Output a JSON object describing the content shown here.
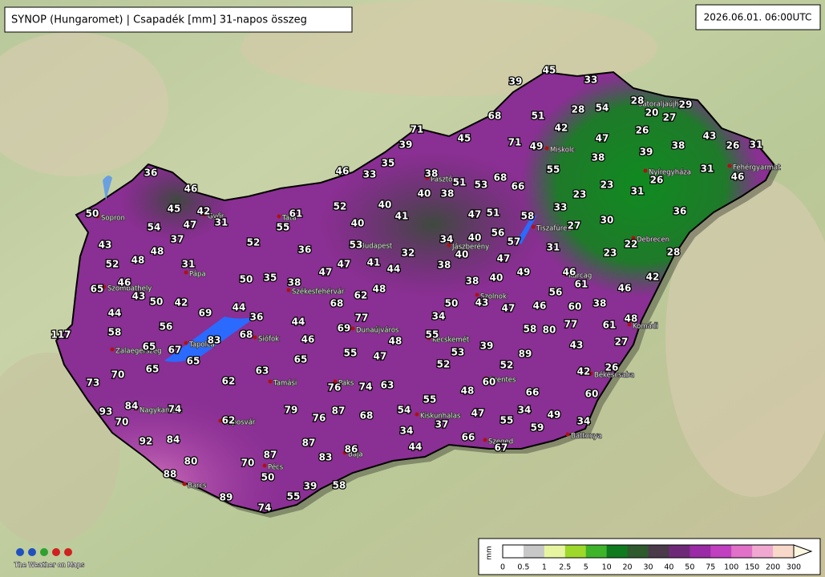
{
  "header": {
    "title": "SYNOP (Hungaromet) | Csapadék [mm] 31-napos összeg",
    "time": "2026.06.01. 06:00UTC"
  },
  "stations": {
    "values": [
      45,
      33,
      39,
      28,
      54,
      28,
      29,
      20,
      27,
      68,
      51,
      71,
      45,
      42,
      47,
      26,
      43,
      39,
      71,
      49,
      39,
      38,
      26,
      31,
      35,
      36,
      46,
      33,
      38,
      55,
      38,
      31,
      46,
      51,
      53,
      68,
      66,
      23,
      26,
      46,
      40,
      38,
      23,
      31,
      45,
      42,
      50,
      61,
      52,
      40,
      41,
      47,
      51,
      58,
      33,
      30,
      36,
      54,
      47,
      31,
      55,
      40,
      27,
      43,
      37,
      52,
      53,
      34,
      40,
      56,
      57,
      22,
      48,
      36,
      32,
      38,
      40,
      31,
      23,
      28,
      52,
      48,
      31,
      47,
      47,
      41,
      44,
      47,
      49,
      46,
      42,
      46,
      65,
      50,
      35,
      38,
      38,
      40,
      61,
      46,
      43,
      62,
      48,
      50,
      42,
      68,
      50,
      43,
      47,
      46,
      56,
      60,
      38,
      44,
      69,
      44,
      36,
      77,
      34,
      48,
      61,
      77,
      58,
      56,
      68,
      44,
      69,
      58,
      80,
      117,
      83,
      46,
      48,
      55,
      39,
      43,
      27,
      65,
      67,
      55,
      47,
      53,
      89,
      65,
      65,
      52,
      52,
      70,
      65,
      63,
      42,
      26,
      73,
      62,
      76,
      74,
      63,
      60,
      48,
      66,
      60,
      84,
      74,
      79,
      87,
      55,
      54,
      34,
      49,
      93,
      76,
      68,
      47,
      55,
      34,
      70,
      62,
      37,
      34,
      59,
      92,
      84,
      87,
      44,
      66,
      67,
      83,
      86,
      87,
      80,
      70,
      88,
      50,
      39,
      58,
      55,
      89,
      74
    ]
  },
  "cities": [
    "Sopron",
    "Győr",
    "Tata",
    "Pápa",
    "Szombathely",
    "Székesfehérvár",
    "Budapest",
    "Pásztó",
    "Jászberény",
    "Miskolc",
    "Nyíregyháza",
    "Fehérgyarmat",
    "Sátoraljaújhely",
    "Tiszafüred",
    "Debrecen",
    "Karcag",
    "Szolnok",
    "Komádi",
    "Dunaújváros",
    "Kecskemét",
    "Siófok",
    "Tapolca",
    "Zalaegerszeg",
    "Tamási",
    "Paks",
    "Békéscsaba",
    "Szentes",
    "Nagykanizsa",
    "Kiskunhalas",
    "Kaposvár",
    "Battonya",
    "Szeged",
    "Baja",
    "Pécs",
    "Barcs"
  ],
  "legend": {
    "unit": "mm",
    "ticks": [
      0,
      0.5,
      1,
      2.5,
      5,
      10,
      20,
      30,
      40,
      50,
      75,
      100,
      150,
      200,
      300
    ],
    "colors": [
      "#ffffff",
      "#c8c8c8",
      "#e8f5a0",
      "#9ed82a",
      "#3fb32a",
      "#0f7a1e",
      "#2e5a2e",
      "#4a3a4a",
      "#6e2a78",
      "#9a2aa6",
      "#c040c0",
      "#e070c8",
      "#f0a8d0",
      "#f8d8c8",
      "#fff8e0"
    ]
  },
  "logo": {
    "text": "The Weather on Maps"
  }
}
